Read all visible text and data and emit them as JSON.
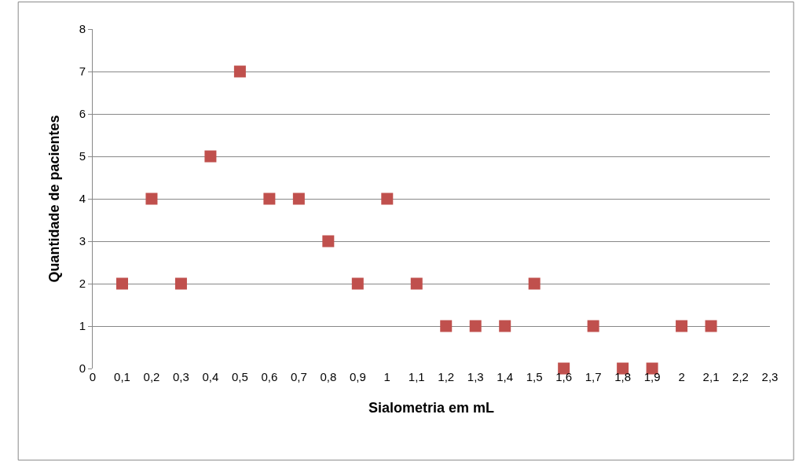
{
  "chart_data": {
    "type": "scatter",
    "xlabel": "Sialometria em mL",
    "ylabel": "Quantidade de pacientes",
    "x": [
      0.1,
      0.2,
      0.3,
      0.4,
      0.5,
      0.6,
      0.7,
      0.8,
      0.9,
      1,
      1.1,
      1.2,
      1.3,
      1.4,
      1.5,
      1.6,
      1.7,
      1.8,
      1.9,
      2,
      2.1
    ],
    "series": [
      {
        "color": "#c0504d",
        "values": [
          2,
          4,
          2,
          5,
          7,
          4,
          4,
          3,
          2,
          4,
          2,
          1,
          1,
          1,
          2,
          0,
          1,
          0,
          0,
          1,
          1
        ]
      }
    ],
    "xlim": [
      0,
      2.3
    ],
    "xticks": [
      0,
      {
        "value": 0.1,
        "label": "0,1"
      },
      {
        "value": 0.2,
        "label": "0,2"
      },
      {
        "value": 0.3,
        "label": "0,3"
      },
      {
        "value": 0.4,
        "label": "0,4"
      },
      {
        "value": 0.5,
        "label": "0,5"
      },
      {
        "value": 0.6,
        "label": "0,6"
      },
      {
        "value": 0.7,
        "label": "0,7"
      },
      {
        "value": 0.8,
        "label": "0,8"
      },
      {
        "value": 0.9,
        "label": "0,9"
      },
      1,
      {
        "value": 1.1,
        "label": "1,1"
      },
      {
        "value": 1.2,
        "label": "1,2"
      },
      {
        "value": 1.3,
        "label": "1,3"
      },
      {
        "value": 1.4,
        "label": "1,4"
      },
      {
        "value": 1.5,
        "label": "1,5"
      },
      {
        "value": 1.6,
        "label": "1,6"
      },
      {
        "value": 1.7,
        "label": "1,7"
      },
      {
        "value": 1.8,
        "label": "1,8"
      },
      {
        "value": 1.9,
        "label": "1,9"
      },
      2,
      {
        "value": 2.1,
        "label": "2,1"
      },
      {
        "value": 2.2,
        "label": "2,2"
      },
      {
        "value": 2.3,
        "label": "2,3"
      }
    ],
    "ylim": [
      0,
      8
    ],
    "yticks": [
      0,
      1,
      2,
      3,
      4,
      5,
      6,
      7,
      8
    ],
    "grid": "y",
    "marker": "square"
  }
}
